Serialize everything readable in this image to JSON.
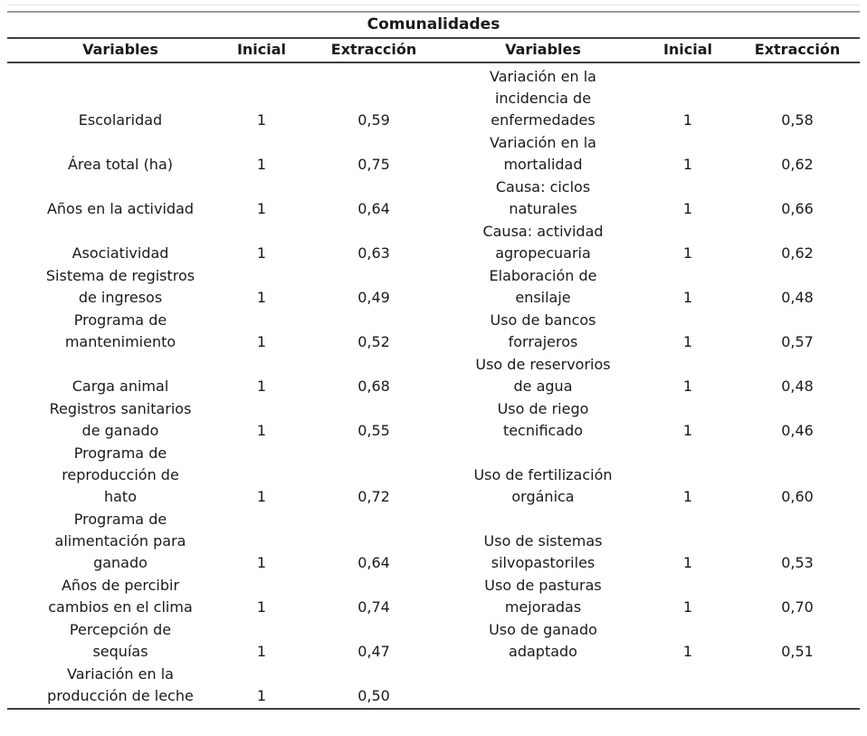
{
  "table": {
    "title": "Comunalidades",
    "headers": [
      "Variables",
      "Inicial",
      "Extracción",
      "Variables",
      "Inicial",
      "Extracción"
    ],
    "rows": [
      {
        "l_var": "Escolaridad",
        "l_ini": "1",
        "l_ext": "0,59",
        "r_var": "Variación en la\nincidencia de\nenfermedades",
        "r_ini": "1",
        "r_ext": "0,58"
      },
      {
        "l_var": "Área total (ha)",
        "l_ini": "1",
        "l_ext": "0,75",
        "r_var": "Variación en la\nmortalidad",
        "r_ini": "1",
        "r_ext": "0,62"
      },
      {
        "l_var": "Años en la actividad",
        "l_ini": "1",
        "l_ext": "0,64",
        "r_var": "Causa: ciclos\nnaturales",
        "r_ini": "1",
        "r_ext": "0,66"
      },
      {
        "l_var": "Asociatividad",
        "l_ini": "1",
        "l_ext": "0,63",
        "r_var": "Causa: actividad\nagropecuaria",
        "r_ini": "1",
        "r_ext": "0,62"
      },
      {
        "l_var": "Sistema de registros\nde ingresos",
        "l_ini": "1",
        "l_ext": "0,49",
        "r_var": "Elaboración de\nensilaje",
        "r_ini": "1",
        "r_ext": "0,48"
      },
      {
        "l_var": "Programa de\nmantenimiento",
        "l_ini": "1",
        "l_ext": "0,52",
        "r_var": "Uso de bancos\nforrajeros",
        "r_ini": "1",
        "r_ext": "0,57"
      },
      {
        "l_var": "Carga animal",
        "l_ini": "1",
        "l_ext": "0,68",
        "r_var": "Uso de reservorios\nde agua",
        "r_ini": "1",
        "r_ext": "0,48"
      },
      {
        "l_var": "Registros sanitarios\nde ganado",
        "l_ini": "1",
        "l_ext": "0,55",
        "r_var": "Uso de riego\ntecnificado",
        "r_ini": "1",
        "r_ext": "0,46"
      },
      {
        "l_var": "Programa de\nreproducción de\nhato",
        "l_ini": "1",
        "l_ext": "0,72",
        "r_var": "Uso de fertilización\norgánica",
        "r_ini": "1",
        "r_ext": "0,60"
      },
      {
        "l_var": "Programa de\nalimentación para\nganado",
        "l_ini": "1",
        "l_ext": "0,64",
        "r_var": "Uso de sistemas\nsilvopastoriles",
        "r_ini": "1",
        "r_ext": "0,53"
      },
      {
        "l_var": "Años de percibir\ncambios en el clima",
        "l_ini": "1",
        "l_ext": "0,74",
        "r_var": "Uso de pasturas\nmejoradas",
        "r_ini": "1",
        "r_ext": "0,70"
      },
      {
        "l_var": "Percepción de\nsequías",
        "l_ini": "1",
        "l_ext": "0,47",
        "r_var": "Uso de ganado\nadaptado",
        "r_ini": "1",
        "r_ext": "0,51"
      },
      {
        "l_var": "Variación en la\nproducción de leche",
        "l_ini": "1",
        "l_ext": "0,50",
        "r_var": "",
        "r_ini": "",
        "r_ext": ""
      }
    ]
  },
  "chart_data": {
    "type": "table",
    "title": "Comunalidades",
    "columns": [
      "Variables",
      "Inicial",
      "Extracción",
      "Variables",
      "Inicial",
      "Extracción"
    ],
    "rows": [
      [
        "Escolaridad",
        "1",
        "0,59",
        "Variación en la incidencia de enfermedades",
        "1",
        "0,58"
      ],
      [
        "Área total (ha)",
        "1",
        "0,75",
        "Variación en la mortalidad",
        "1",
        "0,62"
      ],
      [
        "Años en la actividad",
        "1",
        "0,64",
        "Causa: ciclos naturales",
        "1",
        "0,66"
      ],
      [
        "Asociatividad",
        "1",
        "0,63",
        "Causa: actividad agropecuaria",
        "1",
        "0,62"
      ],
      [
        "Sistema de registros de ingresos",
        "1",
        "0,49",
        "Elaboración de ensilaje",
        "1",
        "0,48"
      ],
      [
        "Programa de mantenimiento",
        "1",
        "0,52",
        "Uso de bancos forrajeros",
        "1",
        "0,57"
      ],
      [
        "Carga animal",
        "1",
        "0,68",
        "Uso de reservorios de agua",
        "1",
        "0,48"
      ],
      [
        "Registros sanitarios de ganado",
        "1",
        "0,55",
        "Uso de riego tecnificado",
        "1",
        "0,46"
      ],
      [
        "Programa de reproducción de hato",
        "1",
        "0,72",
        "Uso de fertilización orgánica",
        "1",
        "0,60"
      ],
      [
        "Programa de alimentación para ganado",
        "1",
        "0,64",
        "Uso de sistemas silvopastoriles",
        "1",
        "0,53"
      ],
      [
        "Años de percibir cambios en el clima",
        "1",
        "0,74",
        "Uso de pasturas mejoradas",
        "1",
        "0,70"
      ],
      [
        "Percepción de sequías",
        "1",
        "0,47",
        "Uso de ganado adaptado",
        "1",
        "0,51"
      ],
      [
        "Variación en la producción de leche",
        "1",
        "0,50",
        "",
        "",
        ""
      ]
    ]
  }
}
